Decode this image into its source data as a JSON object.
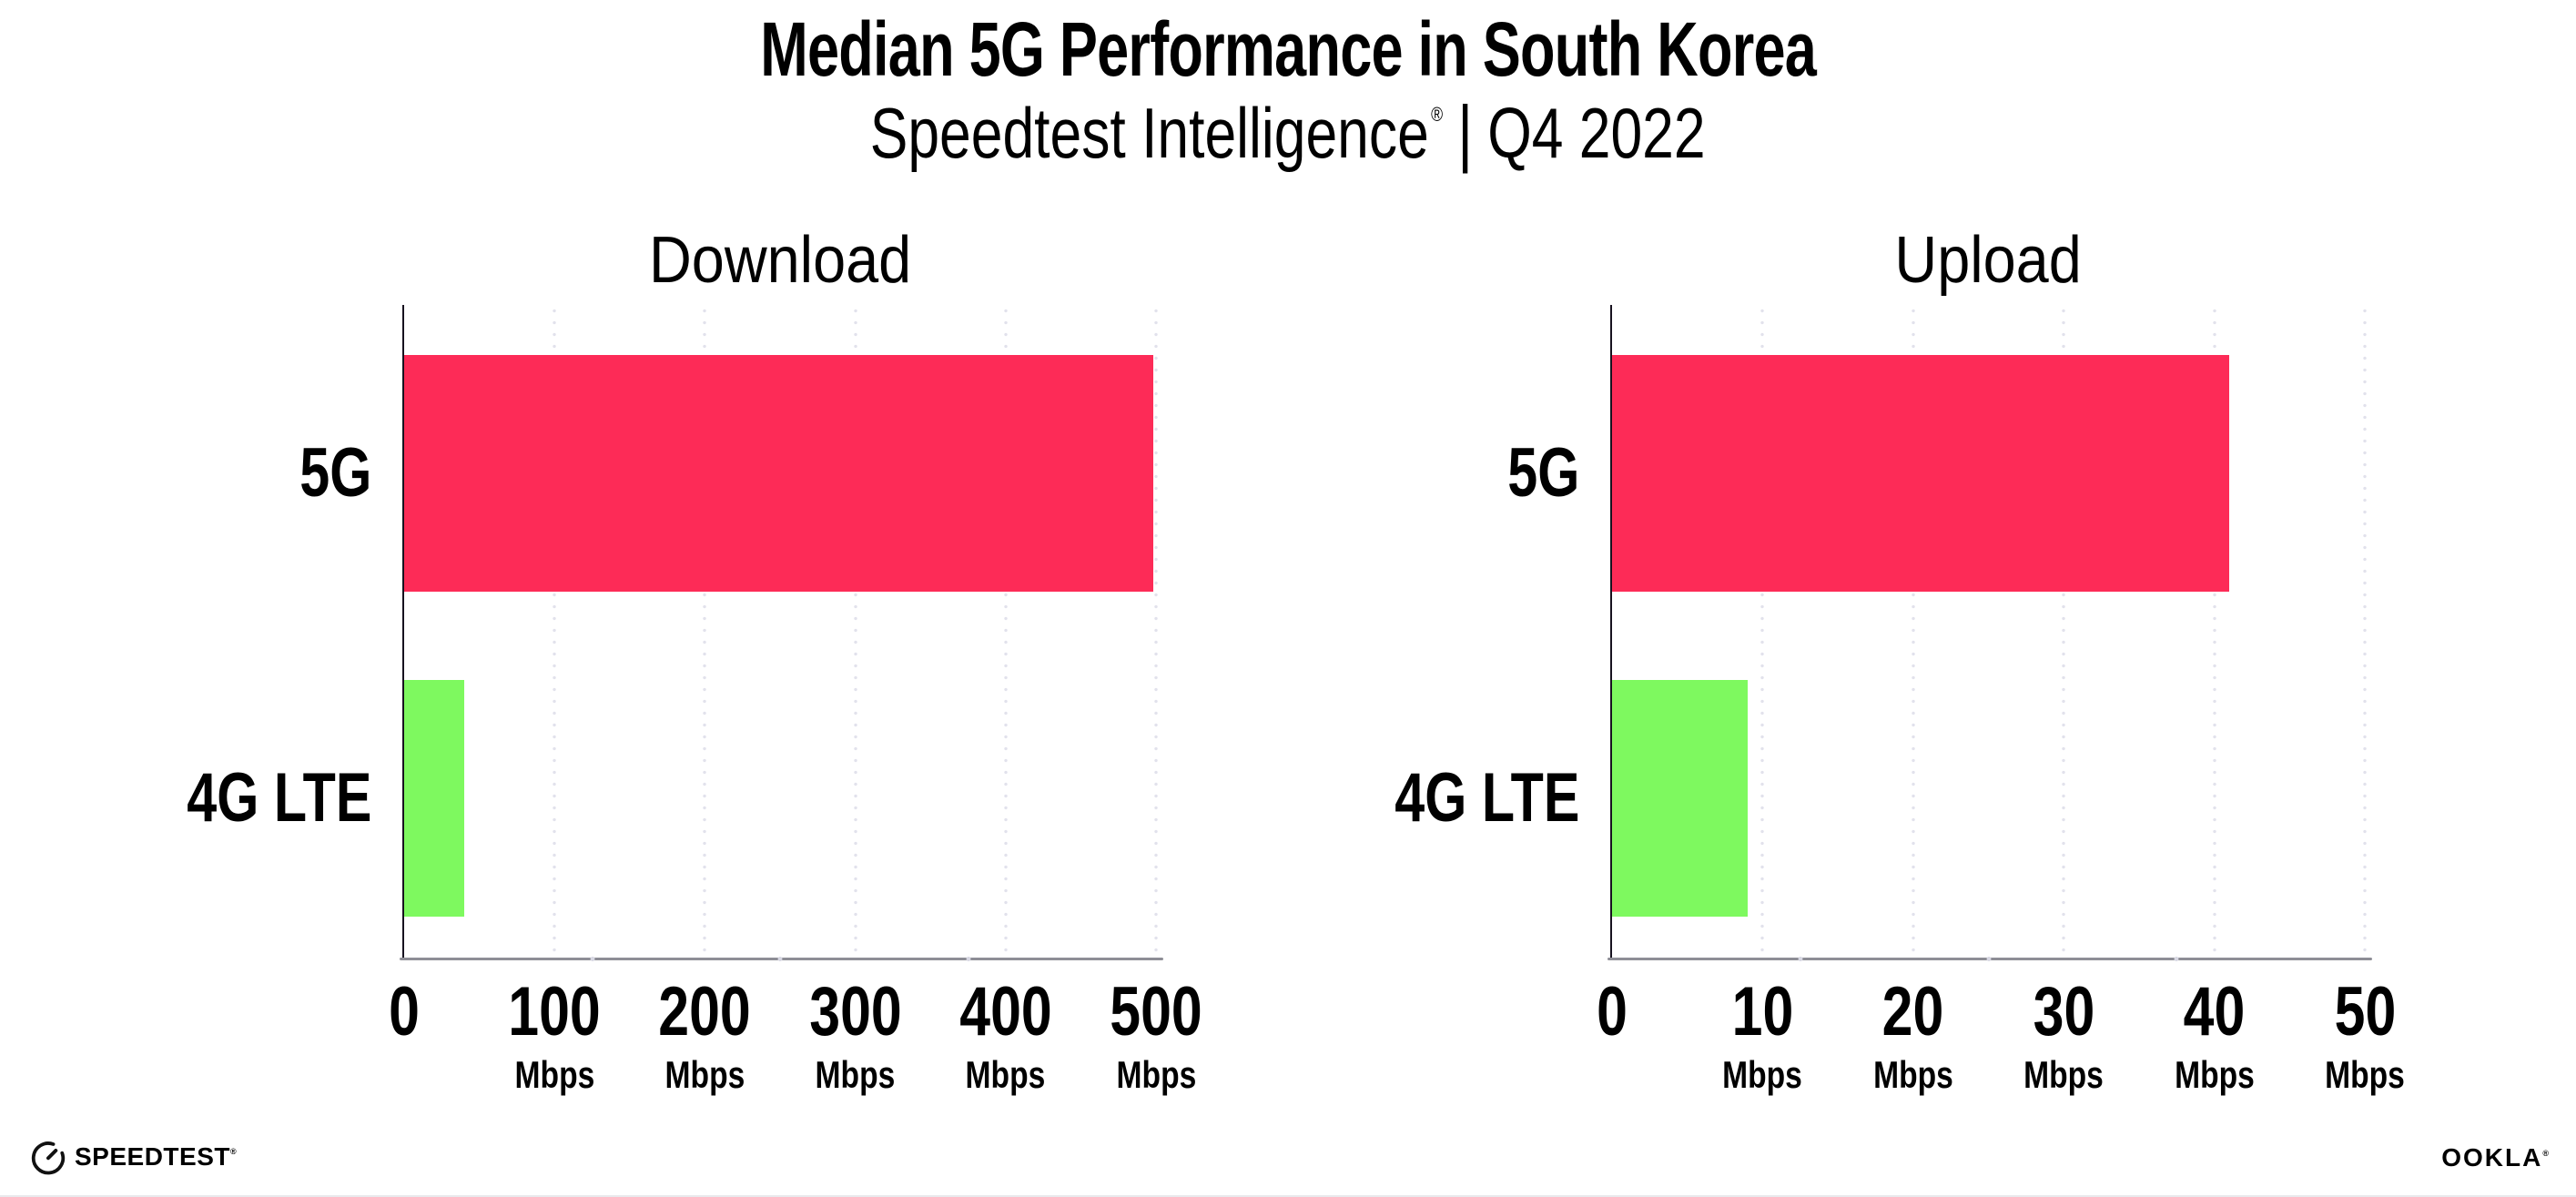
{
  "header": {
    "title": "Median 5G Performance in South Korea",
    "subtitle_brand": "Speedtest Intelligence",
    "subtitle_reg": "®",
    "subtitle_divider": "|",
    "subtitle_period": "Q4 2022"
  },
  "colors": {
    "bar_5g": "#FD2B57",
    "bar_4g_lte": "#7EF95F",
    "gridline": "#E2E2EC",
    "minor_tick": "#D7D7E2",
    "x_axis": "#8E8E96",
    "y_axis": "#17121F",
    "text": "#000000"
  },
  "chart_data": [
    {
      "type": "bar",
      "orientation": "horizontal",
      "title": "Download",
      "categories": [
        "5G",
        "4G LTE"
      ],
      "values": [
        498,
        40
      ],
      "unit": "Mbps",
      "xlim": [
        0,
        500
      ],
      "xticks": [
        0,
        100,
        200,
        300,
        400,
        500
      ],
      "bar_colors": [
        "#FD2B57",
        "#7EF95F"
      ],
      "grid": "dotted-vertical",
      "legend": "none"
    },
    {
      "type": "bar",
      "orientation": "horizontal",
      "title": "Upload",
      "categories": [
        "5G",
        "4G LTE"
      ],
      "values": [
        41,
        9
      ],
      "unit": "Mbps",
      "xlim": [
        0,
        50
      ],
      "xticks": [
        0,
        10,
        20,
        30,
        40,
        50
      ],
      "bar_colors": [
        "#FD2B57",
        "#7EF95F"
      ],
      "grid": "dotted-vertical",
      "legend": "none"
    }
  ],
  "footer": {
    "speedtest_logo_text": "SPEEDTEST",
    "speedtest_mark": "®",
    "ookla_logo_text": "OOKLA",
    "ookla_mark": "®"
  }
}
